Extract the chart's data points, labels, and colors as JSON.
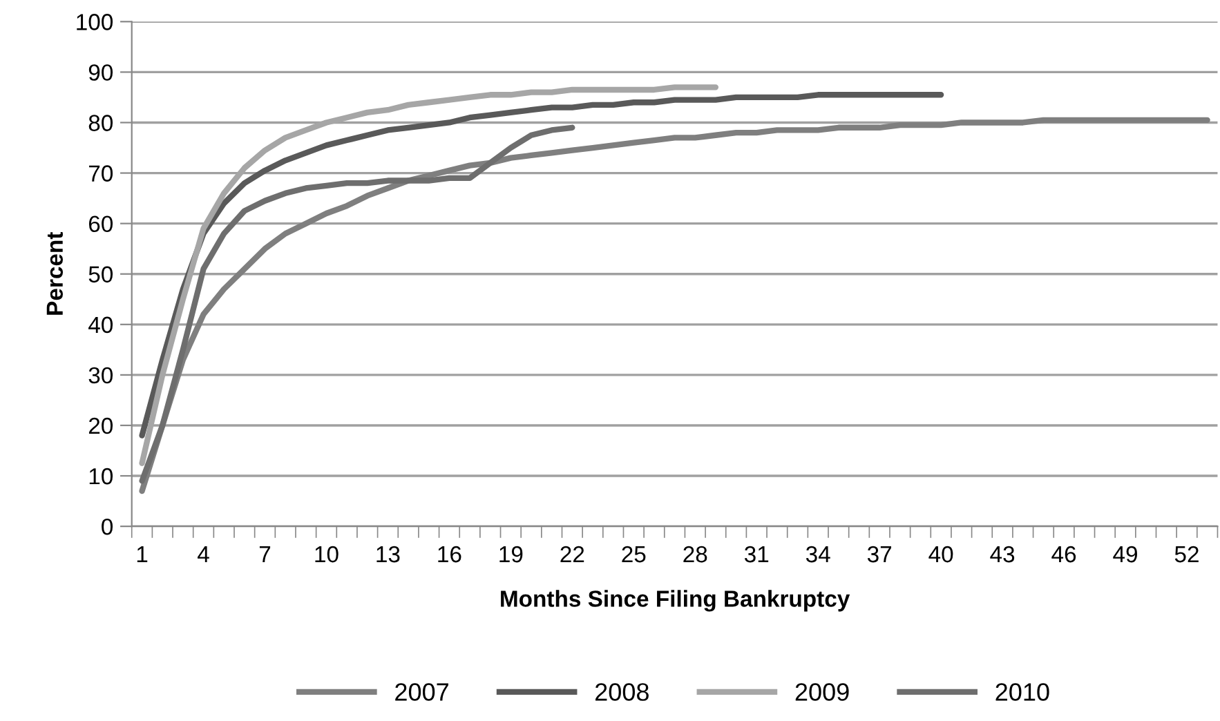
{
  "chart_data": {
    "type": "line",
    "xlabel": "Months Since Filing Bankruptcy",
    "ylabel": "Percent",
    "categories": [
      "1",
      null,
      null,
      "4",
      null,
      null,
      "7",
      null,
      null,
      "10",
      null,
      null,
      "13",
      null,
      null,
      "16",
      null,
      null,
      "19",
      null,
      null,
      "22",
      null,
      null,
      "25",
      null,
      null,
      "28",
      null,
      null,
      "31",
      null,
      null,
      "34",
      null,
      null,
      "37",
      null,
      null,
      "40",
      null,
      null,
      "43",
      null,
      null,
      "46",
      null,
      null,
      "49",
      null,
      null,
      "52",
      null
    ],
    "series": [
      {
        "name": "2007",
        "color": "#7f7f7f",
        "values": [
          7,
          20,
          33,
          42,
          47,
          51,
          55,
          58,
          60,
          62,
          63.5,
          65.5,
          67,
          68.5,
          69.5,
          70.5,
          71.5,
          72,
          73,
          73.5,
          74,
          74.5,
          75,
          75.5,
          76,
          76.5,
          77,
          77,
          77.5,
          78,
          78,
          78.5,
          78.5,
          78.5,
          79,
          79,
          79,
          79.5,
          79.5,
          79.5,
          80,
          80,
          80,
          80,
          80.5,
          80.5,
          80.5,
          80.5,
          80.5,
          80.5,
          80.5,
          80.5,
          80.5
        ]
      },
      {
        "name": "2008",
        "color": "#595959",
        "values": [
          18,
          33,
          47,
          58,
          64,
          68,
          70.5,
          72.5,
          74,
          75.5,
          76.5,
          77.5,
          78.5,
          79,
          79.5,
          80,
          81,
          81.5,
          82,
          82.5,
          83,
          83,
          83.5,
          83.5,
          84,
          84,
          84.5,
          84.5,
          84.5,
          85,
          85,
          85,
          85,
          85.5,
          85.5,
          85.5,
          85.5,
          85.5,
          85.5,
          85.5,
          null,
          null,
          null,
          null,
          null,
          null,
          null,
          null,
          null,
          null,
          null,
          null,
          null
        ]
      },
      {
        "name": "2009",
        "color": "#a6a6a6",
        "values": [
          12.5,
          30,
          45,
          59,
          66,
          71,
          74.5,
          77,
          78.5,
          80,
          81,
          82,
          82.5,
          83.5,
          84,
          84.5,
          85,
          85.5,
          85.5,
          86,
          86,
          86.5,
          86.5,
          86.5,
          86.5,
          86.5,
          87,
          87,
          87,
          null,
          null,
          null,
          null,
          null,
          null,
          null,
          null,
          null,
          null,
          null,
          null,
          null,
          null,
          null,
          null,
          null,
          null,
          null,
          null,
          null,
          null,
          null,
          null
        ]
      },
      {
        "name": "2010",
        "color": "#6e6e6e",
        "values": [
          9,
          20,
          35,
          51,
          58,
          62.5,
          64.5,
          66,
          67,
          67.5,
          68,
          68,
          68.5,
          68.5,
          68.5,
          69,
          69,
          72,
          75,
          77.5,
          78.5,
          79,
          null,
          null,
          null,
          null,
          null,
          null,
          null,
          null,
          null,
          null,
          null,
          null,
          null,
          null,
          null,
          null,
          null,
          null,
          null,
          null,
          null,
          null,
          null,
          null,
          null,
          null,
          null,
          null,
          null,
          null,
          null
        ]
      }
    ],
    "ylim": [
      0,
      100
    ],
    "yticks": [
      0,
      10,
      20,
      30,
      40,
      50,
      60,
      70,
      80,
      90,
      100
    ],
    "grid": "y",
    "legend": "bottom"
  }
}
